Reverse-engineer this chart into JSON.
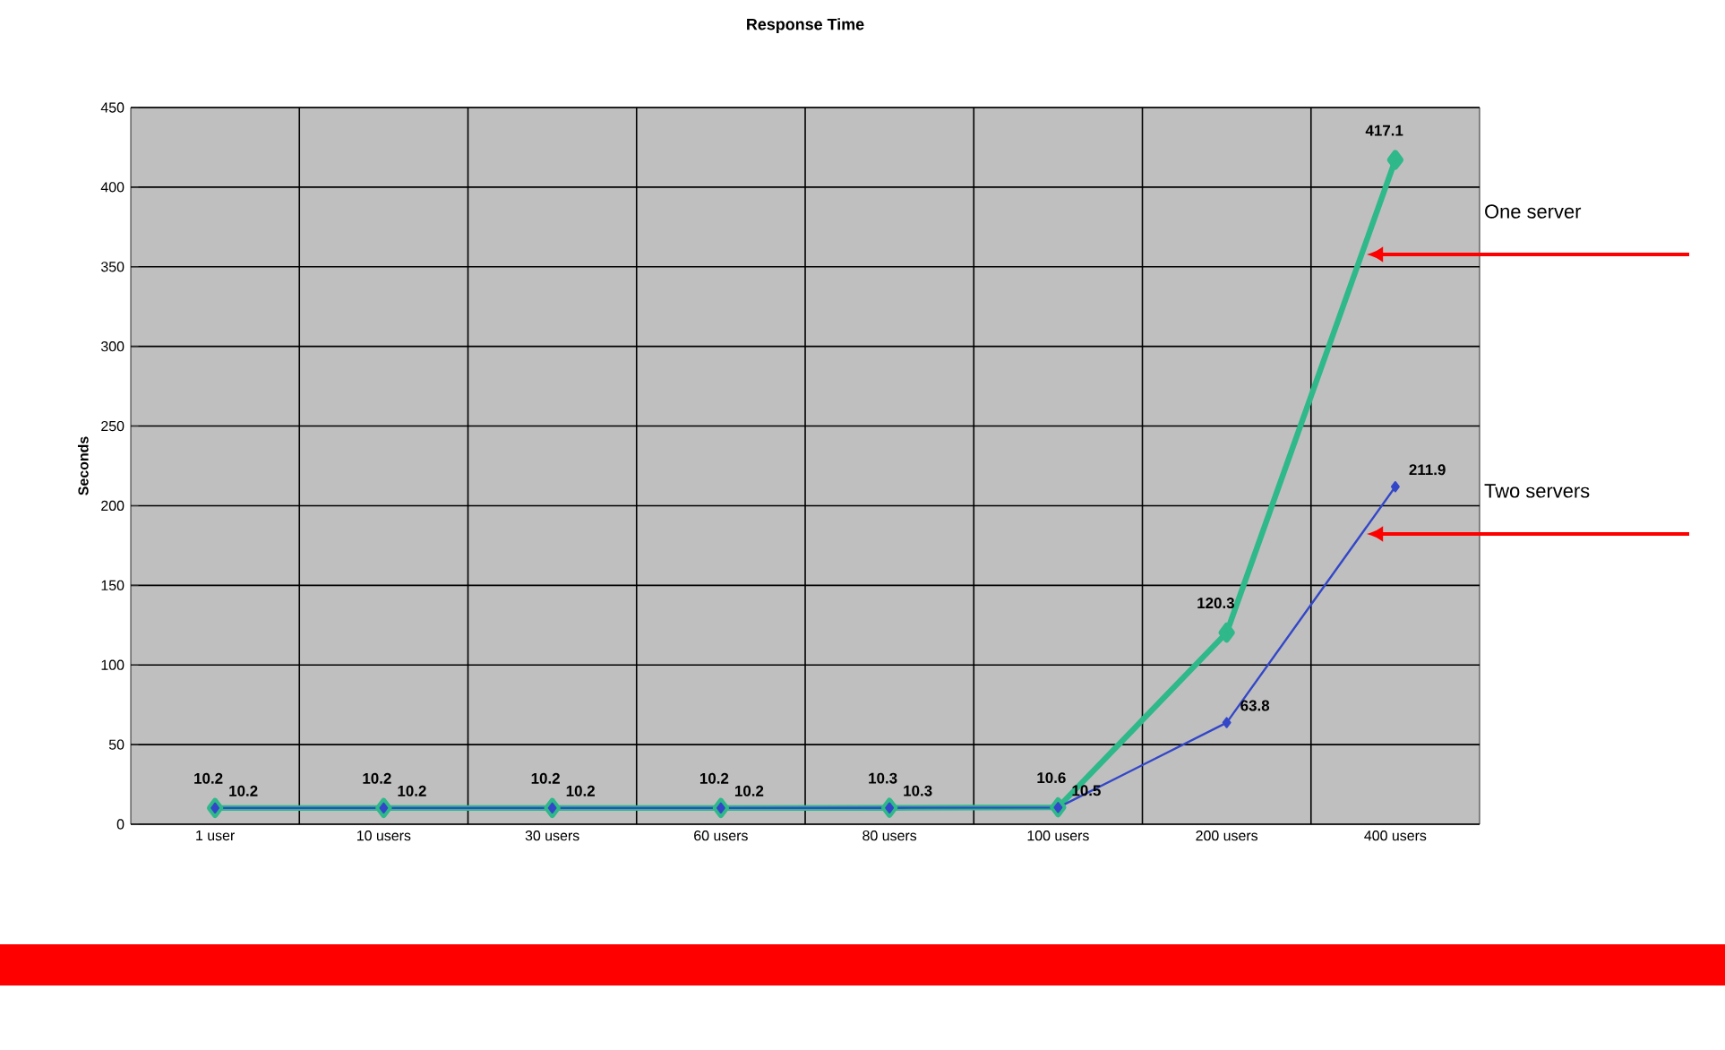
{
  "chart_data": {
    "type": "line",
    "title": "Response Time",
    "ylabel": "Seconds",
    "categories": [
      "1 user",
      "10 users",
      "30 users",
      "60 users",
      "80 users",
      "100 users",
      "200 users",
      "400 users"
    ],
    "series": [
      {
        "name": "One server",
        "color": "#2fb88a",
        "values": [
          10.2,
          10.2,
          10.2,
          10.2,
          10.3,
          10.6,
          120.3,
          417.1
        ]
      },
      {
        "name": "Two servers",
        "color": "#3347c8",
        "values": [
          10.2,
          10.2,
          10.2,
          10.2,
          10.3,
          10.5,
          63.8,
          211.9
        ]
      }
    ],
    "ylim": [
      0,
      450
    ],
    "yticks": [
      0,
      50,
      100,
      150,
      200,
      250,
      300,
      350,
      400,
      450
    ],
    "grid": true,
    "marker": "diamond",
    "line_style": "solid",
    "data_labels": true
  }
}
